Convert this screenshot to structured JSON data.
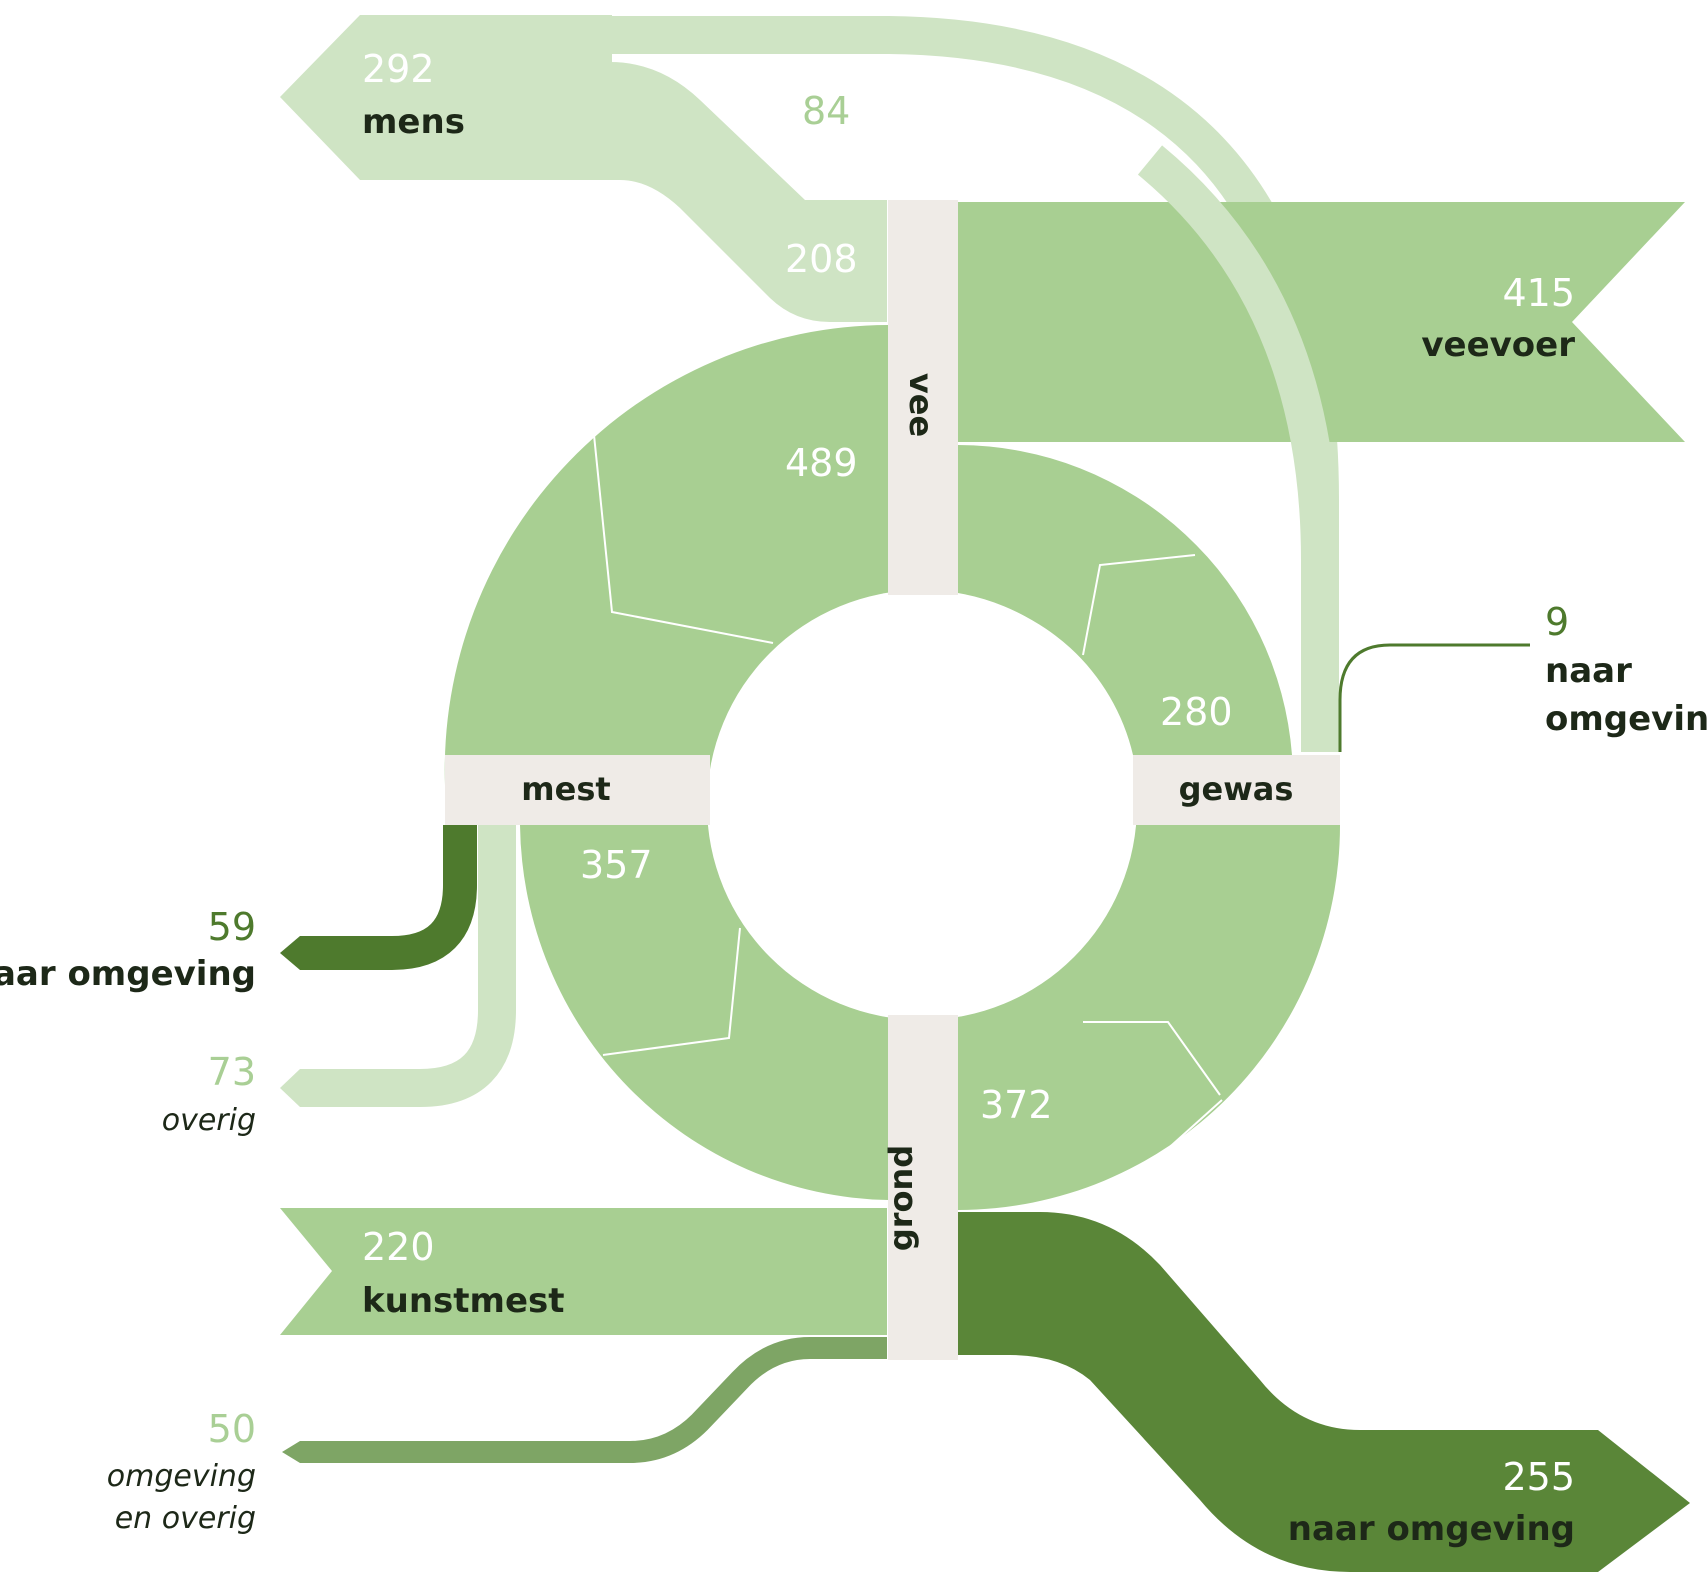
{
  "colors": {
    "light": "#cfe4c4",
    "medium": "#a8cf92",
    "dark": "#4e7a2d",
    "darker": "#5a8638",
    "muted": "#7ea565",
    "node": "#efebe7",
    "text_dark": "#1d2818",
    "text_white": "#ffffff",
    "text_light": "#a9cf95",
    "text_green": "#4e7a2d"
  },
  "nodes": {
    "vee": "vee",
    "mest": "mest",
    "gewas": "gewas",
    "grond": "grond"
  },
  "flows": {
    "mens": {
      "value": "292",
      "label": "mens"
    },
    "vee_to_mens": {
      "value": "208"
    },
    "gewas_to_mens": {
      "value": "84"
    },
    "veevoer": {
      "value": "415",
      "label": "veevoer"
    },
    "vee_to_mest": {
      "value": "489"
    },
    "gewas_to_vee": {
      "value": "280"
    },
    "gewas_omgeving": {
      "value": "9",
      "label_line1": "naar",
      "label_line2": "omgeving"
    },
    "mest_to_grond": {
      "value": "357"
    },
    "mest_omgeving": {
      "value": "59",
      "label": "naar omgeving"
    },
    "mest_overig": {
      "value": "73",
      "label": "overig"
    },
    "grond_to_gewas": {
      "value": "372"
    },
    "kunstmest": {
      "value": "220",
      "label": "kunstmest"
    },
    "omgeving_in": {
      "value": "50",
      "label_line1": "omgeving",
      "label_line2": "en overig"
    },
    "grond_omgeving": {
      "value": "255",
      "label": "naar omgeving"
    }
  }
}
